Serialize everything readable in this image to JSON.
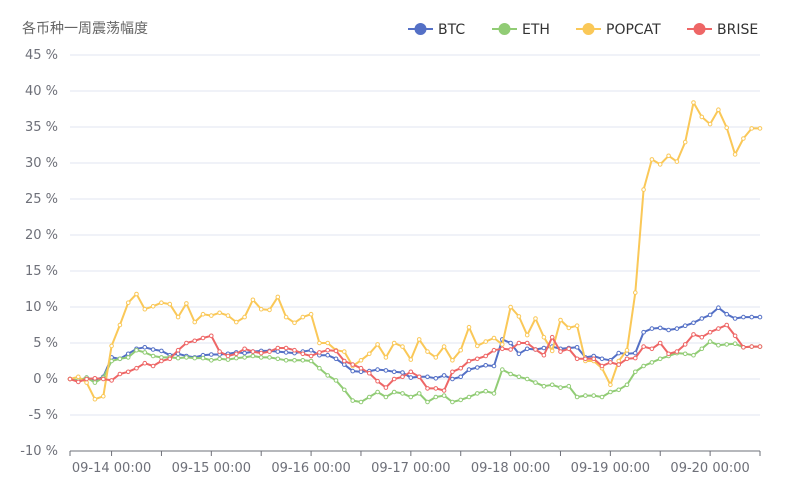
{
  "chart_data": {
    "type": "line",
    "title": "各币种一周震荡幅度",
    "xlabel": "",
    "ylabel": "",
    "ylim": [
      -10,
      45
    ],
    "y_tick_step": 5,
    "y_unit": " %",
    "x_tick_labels": [
      "09-14 00:00",
      "09-15 00:00",
      "09-16 00:00",
      "09-17 00:00",
      "09-18 00:00",
      "09-19 00:00",
      "09-20 00:00"
    ],
    "x_tick_index": [
      5,
      17,
      29,
      41,
      53,
      65,
      77
    ],
    "grid": true,
    "legend_position": "top-right",
    "series": [
      {
        "name": "BTC",
        "color": "#5470c6",
        "values": [
          0,
          -0.3,
          0.2,
          -0.2,
          0.3,
          3,
          2.8,
          3.5,
          4.2,
          4.4,
          4.1,
          3.9,
          3.3,
          3.5,
          3.2,
          3,
          3.3,
          3.4,
          3.4,
          3.5,
          3.7,
          3.6,
          3.8,
          3.9,
          3.9,
          3.8,
          3.7,
          3.6,
          3.8,
          4.0,
          3.3,
          3.3,
          2.8,
          2.0,
          1.1,
          1.0,
          1.1,
          1.3,
          1.2,
          1.0,
          0.9,
          0.2,
          0.3,
          0.3,
          0.1,
          0.5,
          0.0,
          0.3,
          1.3,
          1.6,
          1.9,
          1.8,
          5.5,
          5.0,
          3.5,
          4.2,
          4.1,
          4.3,
          4.5,
          4.2,
          4.3,
          4.4,
          3.0,
          3.2,
          2.8,
          2.6,
          3.6,
          3.5,
          3.6,
          6.5,
          7.0,
          7.1,
          6.8,
          7.0,
          7.4,
          7.8,
          8.4,
          8.9,
          9.9,
          9.0,
          8.4,
          8.6,
          8.6,
          8.6
        ]
      },
      {
        "name": "ETH",
        "color": "#91cc75",
        "values": [
          0,
          -0.2,
          0.2,
          -0.5,
          0.2,
          2.5,
          2.8,
          3.0,
          4.0,
          3.7,
          3.2,
          3.0,
          3.0,
          2.9,
          3.0,
          2.9,
          2.9,
          2.6,
          2.8,
          2.7,
          2.9,
          3.0,
          3.2,
          3.0,
          3.0,
          2.8,
          2.6,
          2.6,
          2.6,
          2.5,
          1.5,
          0.5,
          -0.2,
          -1.5,
          -3.0,
          -3.2,
          -2.5,
          -1.8,
          -2.5,
          -1.8,
          -2.0,
          -2.5,
          -2.0,
          -3.2,
          -2.5,
          -2.3,
          -3.2,
          -2.9,
          -2.5,
          -2.0,
          -1.7,
          -2.0,
          1.3,
          0.7,
          0.3,
          0.0,
          -0.5,
          -1.0,
          -0.8,
          -1.2,
          -1.0,
          -2.5,
          -2.3,
          -2.3,
          -2.5,
          -1.8,
          -1.5,
          -0.8,
          1.0,
          1.8,
          2.3,
          2.8,
          3.2,
          3.6,
          3.5,
          3.3,
          4.2,
          5.2,
          4.7,
          4.8,
          4.9,
          4.4,
          4.5,
          4.5
        ]
      },
      {
        "name": "POPCAT",
        "color": "#fac858",
        "values": [
          0,
          0.3,
          -0.5,
          -2.8,
          -2.4,
          4.6,
          7.5,
          10.6,
          11.8,
          9.7,
          10.1,
          10.6,
          10.4,
          8.6,
          10.5,
          7.9,
          9.0,
          8.8,
          9.2,
          8.8,
          7.9,
          8.6,
          11.0,
          9.7,
          9.6,
          11.4,
          8.6,
          7.8,
          8.6,
          9.0,
          5.0,
          5.0,
          4.0,
          3.8,
          1.8,
          2.6,
          3.5,
          4.8,
          3.0,
          5.0,
          4.5,
          2.7,
          5.5,
          3.8,
          3.0,
          4.5,
          2.6,
          4.0,
          7.2,
          4.6,
          5.2,
          5.7,
          4.8,
          10.0,
          8.7,
          6.1,
          8.4,
          5.8,
          3.9,
          8.2,
          7.1,
          7.4,
          2.5,
          2.5,
          1.5,
          -0.8,
          2.5,
          4.0,
          12.0,
          26.3,
          30.5,
          29.8,
          31.0,
          30.2,
          32.9,
          38.4,
          36.4,
          35.4,
          37.4,
          34.9,
          31.2,
          33.4,
          34.8,
          34.8
        ]
      },
      {
        "name": "BRISE",
        "color": "#ee6666",
        "values": [
          0,
          -0.4,
          0.0,
          0.1,
          0.0,
          -0.2,
          0.7,
          1.0,
          1.5,
          2.2,
          1.8,
          2.5,
          2.8,
          4.0,
          5.0,
          5.3,
          5.7,
          6.0,
          3.8,
          3.2,
          3.5,
          4.2,
          3.8,
          3.6,
          3.8,
          4.3,
          4.3,
          4.0,
          3.5,
          3.2,
          3.7,
          4.0,
          3.9,
          2.5,
          2.0,
          1.5,
          0.8,
          -0.3,
          -1.2,
          0.0,
          0.3,
          1.0,
          0.3,
          -1.3,
          -1.3,
          -1.6,
          1.0,
          1.5,
          2.5,
          2.8,
          3.2,
          4.0,
          4.2,
          4.1,
          5.0,
          5.0,
          4.1,
          3.3,
          5.8,
          3.8,
          4.2,
          2.8,
          2.8,
          2.8,
          1.8,
          2.3,
          2.0,
          2.8,
          2.9,
          4.5,
          4.2,
          5.0,
          3.5,
          3.8,
          4.8,
          6.2,
          5.8,
          6.5,
          7.0,
          7.5,
          6.0,
          4.4,
          4.5,
          4.5
        ]
      }
    ]
  }
}
